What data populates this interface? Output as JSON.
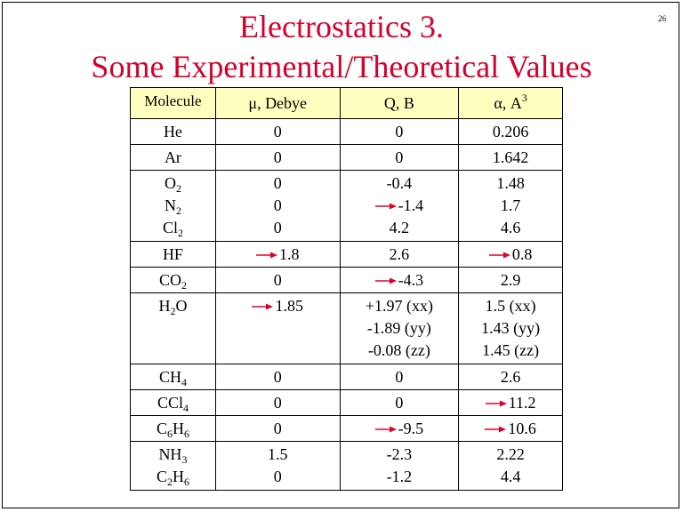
{
  "slide_number": "26",
  "title_line1": "Electrostatics 3.",
  "title_line2": "Some Experimental/Theoretical Values",
  "colors": {
    "title": "#d6002a",
    "arrow": "#e0002a",
    "header_bg": "#ffffc0"
  },
  "table": {
    "headers": {
      "molecule": "Molecule",
      "mu_symbol": "μ",
      "mu_unit": ", Debye",
      "q": "Q, B",
      "alpha_symbol": "α",
      "alpha_unit": ", A",
      "alpha_sup": "3"
    },
    "rows": {
      "he": {
        "mol": "He",
        "mu": "0",
        "q": "0",
        "alpha": "0.206"
      },
      "ar": {
        "mol": "Ar",
        "mu": "0",
        "q": "0",
        "alpha": "1.642"
      },
      "o2": {
        "mol": "O",
        "sub": "2",
        "mu": "0",
        "q": "-0.4",
        "alpha": "1.48"
      },
      "n2": {
        "mol": "N",
        "sub": "2",
        "mu": "0",
        "q": "-1.4",
        "alpha": "1.7"
      },
      "cl2": {
        "mol": "Cl",
        "sub": "2",
        "mu": "0",
        "q": "4.2",
        "alpha": "4.6"
      },
      "hf": {
        "mol": "HF",
        "mu": "1.8",
        "q": "2.6",
        "alpha": "0.8"
      },
      "co2": {
        "mol": "CO",
        "sub": "2",
        "mu": "0",
        "q": "-4.3",
        "alpha": "2.9"
      },
      "h2o": {
        "mol_a": "H",
        "sub": "2",
        "mol_b": "O",
        "mu": "1.85",
        "q1": "+1.97 (xx)",
        "q2": "-1.89 (yy)",
        "q3": "-0.08 (zz)",
        "a1": "1.5 (xx)",
        "a2": "1.43 (yy)",
        "a3": "1.45 (zz)"
      },
      "ch4": {
        "mol": "CH",
        "sub": "4",
        "mu": "0",
        "q": "0",
        "alpha": "2.6"
      },
      "ccl4": {
        "mol": "CCl",
        "sub": "4",
        "mu": "0",
        "q": "0",
        "alpha": "11.2"
      },
      "c6h6": {
        "mol_a": "C",
        "sub1": "6",
        "mol_b": "H",
        "sub2": "6",
        "mu": "0",
        "q": "-9.5",
        "alpha": "10.6"
      },
      "nh3": {
        "mol": "NH",
        "sub": "3",
        "mu": "1.5",
        "q": "-2.3",
        "alpha": "2.22"
      },
      "c2h6": {
        "mol_a": "C",
        "sub1": "2",
        "mol_b": "H",
        "sub2": "6",
        "mu": "0",
        "q": "-1.2",
        "alpha": "4.4"
      }
    }
  }
}
